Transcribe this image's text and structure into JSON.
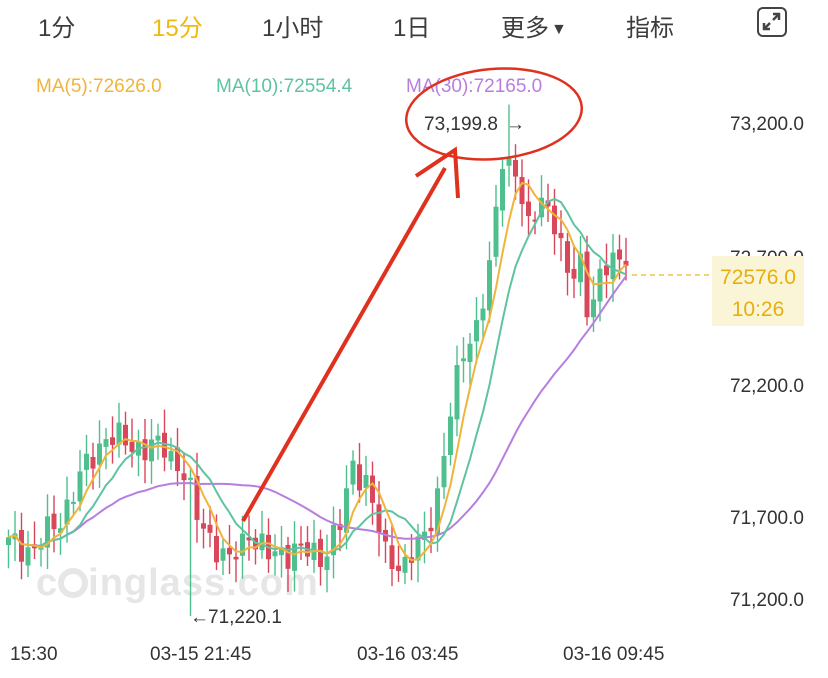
{
  "tabs": [
    "1分",
    "15分",
    "1小时",
    "1日",
    "更多",
    "指标"
  ],
  "active_tab": "15分",
  "more_caret_icon": "caret-down-icon",
  "expand_icon": "expand-icon",
  "ma": {
    "ma5": "MA(5):72626.0",
    "ma10": "MA(10):72554.4",
    "ma30": "MA(30):72165.0"
  },
  "current_price": {
    "price": "72576.0",
    "time": "10:26"
  },
  "annotations": {
    "high": "73,199.8",
    "low": "71,220.1"
  },
  "watermark": "coinglass.com",
  "colors": {
    "up": "#4fc08d",
    "down": "#d9475a",
    "ma5": "#f0b43c",
    "ma10": "#5ec3a0",
    "ma30": "#b77ee0",
    "annotation": "#e0301e",
    "accent": "#f0b90b"
  },
  "chart_data": {
    "type": "candlestick",
    "y_ticks": [
      "73,200.0",
      "72,700.0",
      "72,200.0",
      "71,700.0",
      "71,200.0"
    ],
    "x_ticks": [
      "15:30",
      "03-15 21:45",
      "03-16 03:45",
      "03-16 09:45"
    ],
    "ylim": [
      71050,
      73450
    ],
    "high": 73199.8,
    "low": 71220.1,
    "last": 72576.0
  }
}
